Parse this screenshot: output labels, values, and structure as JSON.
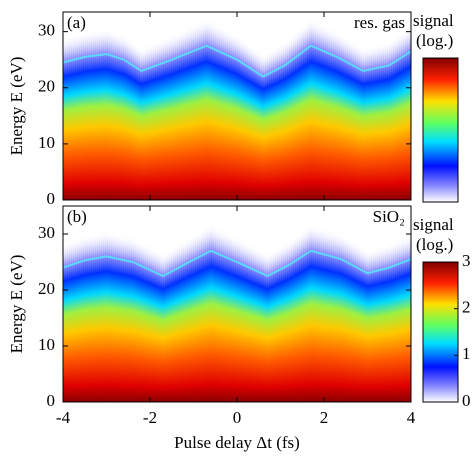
{
  "chart_data": [
    {
      "type": "line",
      "panel_label": "(a)",
      "annotation": "res. gas",
      "ylabel": "Energy E (eV)",
      "x": [
        -4,
        -3.5,
        -3,
        -2.6,
        -2.2,
        -1.5,
        -0.7,
        0,
        0.6,
        1.1,
        1.7,
        2.3,
        2.9,
        3.5,
        4
      ],
      "values": [
        24.5,
        25.5,
        26,
        25,
        23,
        25,
        27.5,
        25,
        22,
        24,
        27.5,
        25.5,
        23,
        24,
        26.5
      ],
      "color": "#5ad8ff",
      "xlim": [
        -4,
        4
      ],
      "xticks": [
        -4,
        -2,
        0,
        2,
        4
      ],
      "ylim": [
        0,
        33.5
      ],
      "yticks": [
        0,
        10,
        20,
        30
      ],
      "colorbar": {
        "label": "signal",
        "sublabel": "(log.)"
      }
    },
    {
      "type": "line",
      "panel_label": "(b)",
      "annotation": "SiO₂",
      "ylabel": "Energy E (eV)",
      "xlabel": "Pulse delay Δt (fs)",
      "x": [
        -4,
        -3.5,
        -3,
        -2.4,
        -1.7,
        -1.1,
        -0.6,
        0,
        0.7,
        1.2,
        1.7,
        2.4,
        3,
        3.5,
        4
      ],
      "values": [
        24,
        25.3,
        26,
        25,
        22.5,
        25,
        27,
        25,
        22.5,
        24.5,
        27,
        25.5,
        23,
        24,
        25.5
      ],
      "color": "#5ad8ff",
      "xlim": [
        -4,
        4
      ],
      "xticks": [
        -4,
        -2,
        0,
        2,
        4
      ],
      "ylim": [
        0,
        35
      ],
      "yticks": [
        0,
        10,
        20,
        30
      ],
      "colorbar": {
        "label": "signal",
        "sublabel": "(log.)",
        "lim": [
          0,
          3
        ],
        "ticks": [
          0,
          1,
          2,
          3
        ]
      }
    }
  ]
}
